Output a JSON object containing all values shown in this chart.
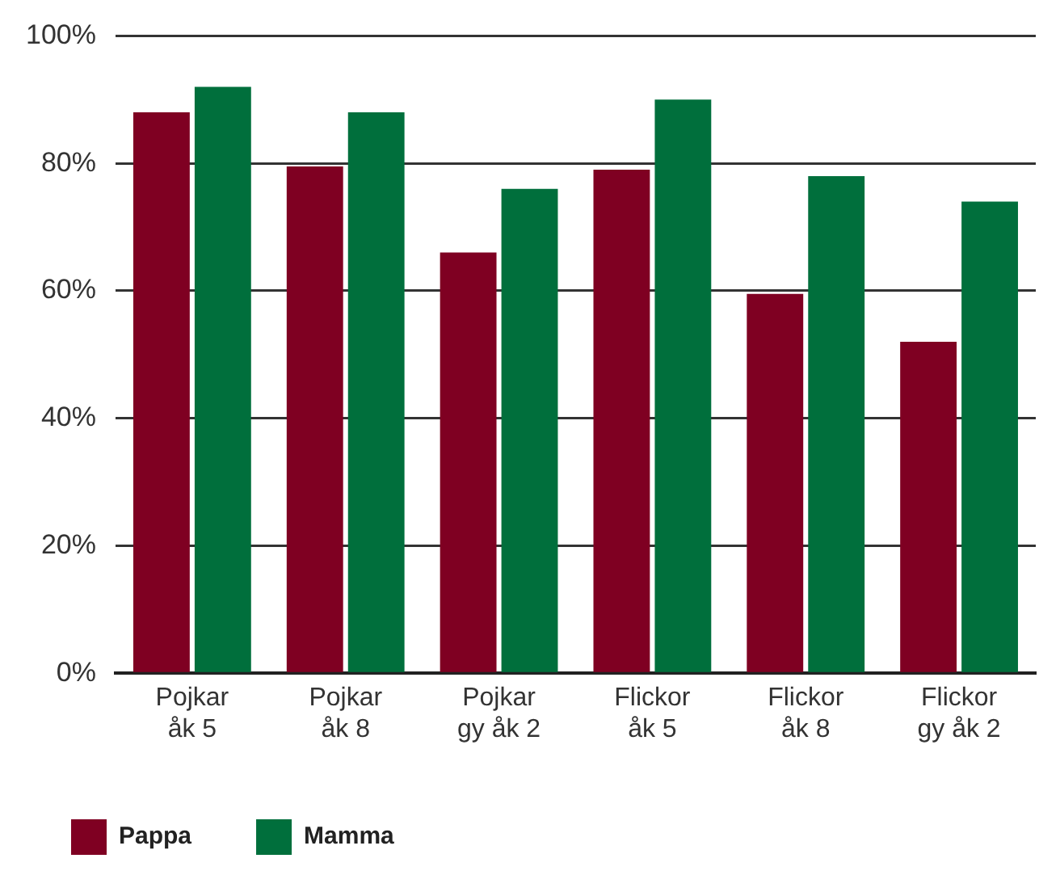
{
  "chart_data": {
    "type": "bar",
    "categories": [
      "Pojkar åk 5",
      "Pojkar åk 8",
      "Pojkar gy åk 2",
      "Flickor åk 5",
      "Flickor åk 8",
      "Flickor gy åk 2"
    ],
    "series": [
      {
        "name": "Pappa",
        "color": "#7f0022",
        "values": [
          88,
          79.5,
          66,
          79,
          59.5,
          52
        ]
      },
      {
        "name": "Mamma",
        "color": "#006f3c",
        "values": [
          92,
          88,
          76,
          90,
          78,
          74
        ]
      }
    ],
    "ylim": [
      0,
      100
    ],
    "yticks": [
      {
        "value": 0,
        "label": "0%"
      },
      {
        "value": 20,
        "label": "20%"
      },
      {
        "value": 40,
        "label": "40%"
      },
      {
        "value": 60,
        "label": "60%"
      },
      {
        "value": 80,
        "label": "80%"
      },
      {
        "value": 100,
        "label": "100%"
      }
    ],
    "grid": "y",
    "legend": "bottom left"
  }
}
